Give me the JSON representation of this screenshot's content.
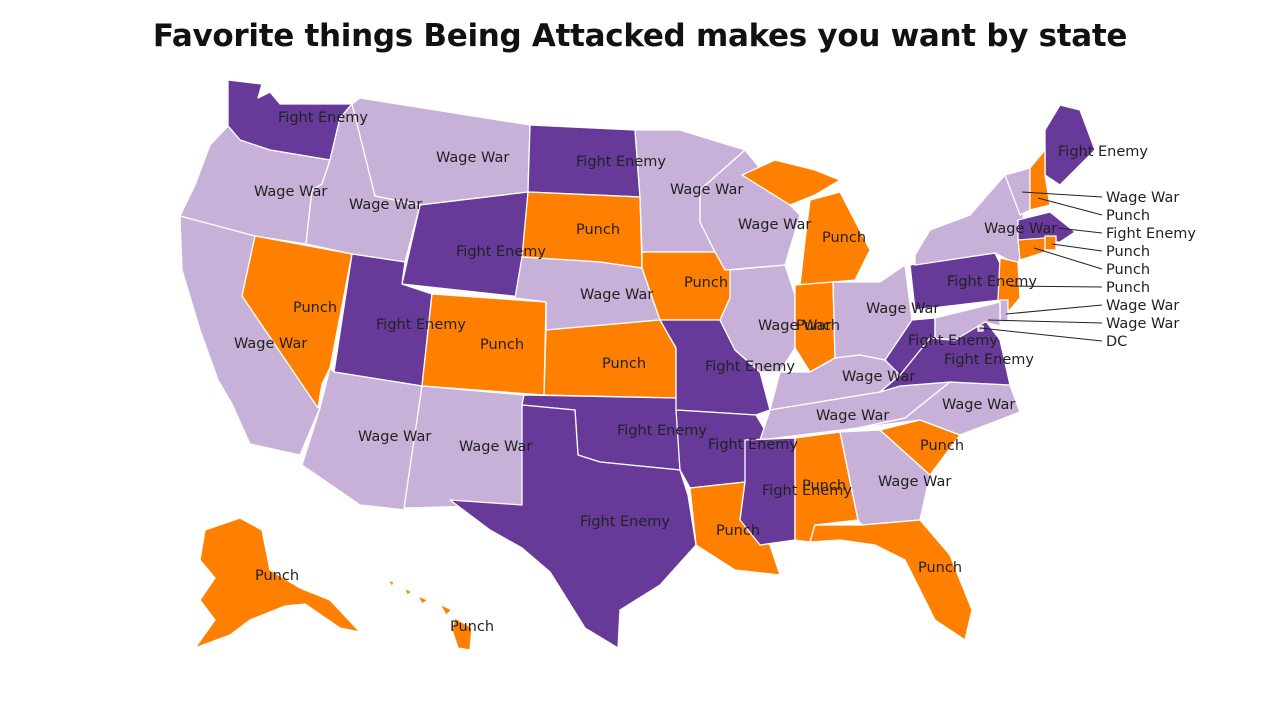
{
  "title": "Favorite things Being Attacked makes you want by state",
  "colors": {
    "Wage War": "#c8b1d8",
    "Punch": "#ff8000",
    "Fight Enemy": "#673a9a"
  },
  "states": [
    {
      "id": "WA",
      "value": "Fight Enemy"
    },
    {
      "id": "OR",
      "value": "Wage War"
    },
    {
      "id": "CA",
      "value": "Wage War"
    },
    {
      "id": "NV",
      "value": "Punch"
    },
    {
      "id": "ID",
      "value": "Wage War"
    },
    {
      "id": "MT",
      "value": "Wage War"
    },
    {
      "id": "WY",
      "value": "Fight Enemy"
    },
    {
      "id": "UT",
      "value": "Fight Enemy"
    },
    {
      "id": "AZ",
      "value": "Wage War"
    },
    {
      "id": "CO",
      "value": "Punch"
    },
    {
      "id": "NM",
      "value": "Wage War"
    },
    {
      "id": "ND",
      "value": "Fight Enemy"
    },
    {
      "id": "SD",
      "value": "Punch"
    },
    {
      "id": "NE",
      "value": "Wage War"
    },
    {
      "id": "KS",
      "value": "Punch"
    },
    {
      "id": "OK",
      "value": "Fight Enemy"
    },
    {
      "id": "TX",
      "value": "Fight Enemy"
    },
    {
      "id": "MN",
      "value": "Wage War"
    },
    {
      "id": "IA",
      "value": "Punch"
    },
    {
      "id": "MO",
      "value": "Fight Enemy"
    },
    {
      "id": "AR",
      "value": "Fight Enemy"
    },
    {
      "id": "LA",
      "value": "Punch"
    },
    {
      "id": "WI",
      "value": "Wage War"
    },
    {
      "id": "IL",
      "value": "Wage War"
    },
    {
      "id": "MI",
      "value": "Punch"
    },
    {
      "id": "IN",
      "value": "Punch"
    },
    {
      "id": "OH",
      "value": "Wage War"
    },
    {
      "id": "KY",
      "value": "Wage War"
    },
    {
      "id": "TN",
      "value": "Wage War"
    },
    {
      "id": "MS",
      "value": "Fight Enemy"
    },
    {
      "id": "AL",
      "value": "Punch"
    },
    {
      "id": "GA",
      "value": "Wage War"
    },
    {
      "id": "FL",
      "value": "Punch"
    },
    {
      "id": "SC",
      "value": "Punch"
    },
    {
      "id": "NC",
      "value": "Wage War"
    },
    {
      "id": "VA",
      "value": "Fight Enemy"
    },
    {
      "id": "WV",
      "value": "Fight Enemy"
    },
    {
      "id": "PA",
      "value": "Fight Enemy"
    },
    {
      "id": "NY",
      "value": "Wage War"
    },
    {
      "id": "ME",
      "value": "Fight Enemy"
    },
    {
      "id": "VT",
      "value": "Wage War"
    },
    {
      "id": "NH",
      "value": "Punch"
    },
    {
      "id": "MA",
      "value": "Fight Enemy"
    },
    {
      "id": "RI",
      "value": "Punch"
    },
    {
      "id": "CT",
      "value": "Punch"
    },
    {
      "id": "NJ",
      "value": "Punch"
    },
    {
      "id": "DE",
      "value": "Wage War"
    },
    {
      "id": "MD",
      "value": "Wage War"
    },
    {
      "id": "DC",
      "value": "DC"
    },
    {
      "id": "AK",
      "value": "Punch"
    },
    {
      "id": "HI",
      "value": "Punch"
    }
  ]
}
